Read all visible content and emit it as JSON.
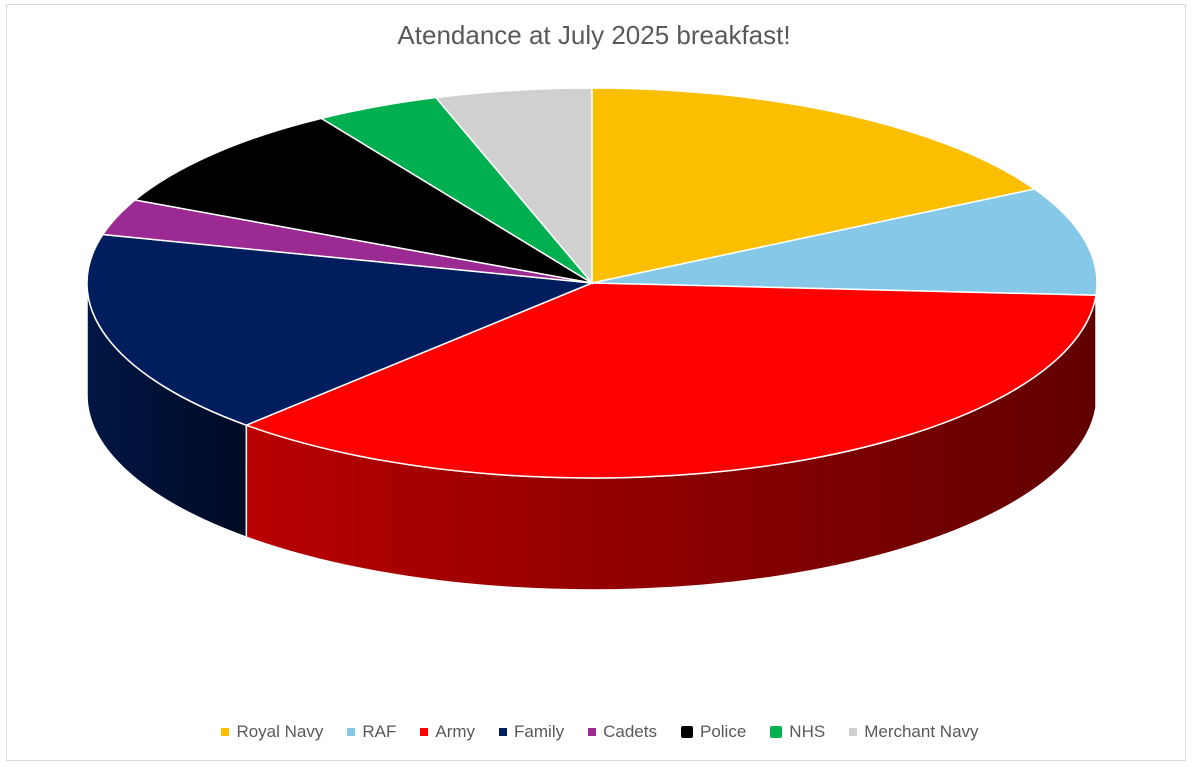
{
  "chart_data": {
    "type": "pie",
    "title": "Atendance at July 2025 breakfast!",
    "legend_position": "bottom",
    "slices": [
      {
        "name": "Royal Navy",
        "value": 17,
        "color": "#FBBF00"
      },
      {
        "name": "RAF",
        "value": 9,
        "color": "#85C8E8"
      },
      {
        "name": "Army",
        "value": 36,
        "color": "#FF0000"
      },
      {
        "name": "Family",
        "value": 17,
        "color": "#001E5E"
      },
      {
        "name": "Cadets",
        "value": 3,
        "color": "#9B2B93"
      },
      {
        "name": "Police",
        "value": 9,
        "color": "#000000"
      },
      {
        "name": "NHS",
        "value": 4,
        "color": "#00AF50"
      },
      {
        "name": "Merchant Navy",
        "value": 5,
        "color": "#D0D0D0"
      }
    ]
  }
}
